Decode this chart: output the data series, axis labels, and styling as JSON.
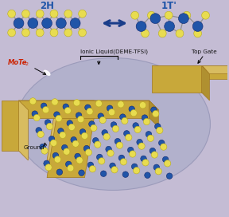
{
  "bg_color": "#c4bcd4",
  "oval_color": "#b0b0cc",
  "oval_edge": "#9898b8",
  "gold_color": "#c8a83a",
  "gold_light": "#d8bc60",
  "gold_dark": "#a07820",
  "gold_side": "#b09030",
  "blue_atom": "#2055a8",
  "yellow_atom": "#e8dc50",
  "yellow_atom_edge": "#b8ac20",
  "blue_atom_edge": "#102870",
  "title_2H": "2H",
  "title_1T": "1T'",
  "label_ionic": "Ionic Liquid(DEME-TFSI)",
  "label_topgate": "Top Gate",
  "label_ground": "Ground",
  "label_mote2": "MoTe",
  "label_mote2_sub": "2",
  "arrow_color": "#1a3d8a",
  "text_color": "#111111",
  "bond_color": "#909090"
}
